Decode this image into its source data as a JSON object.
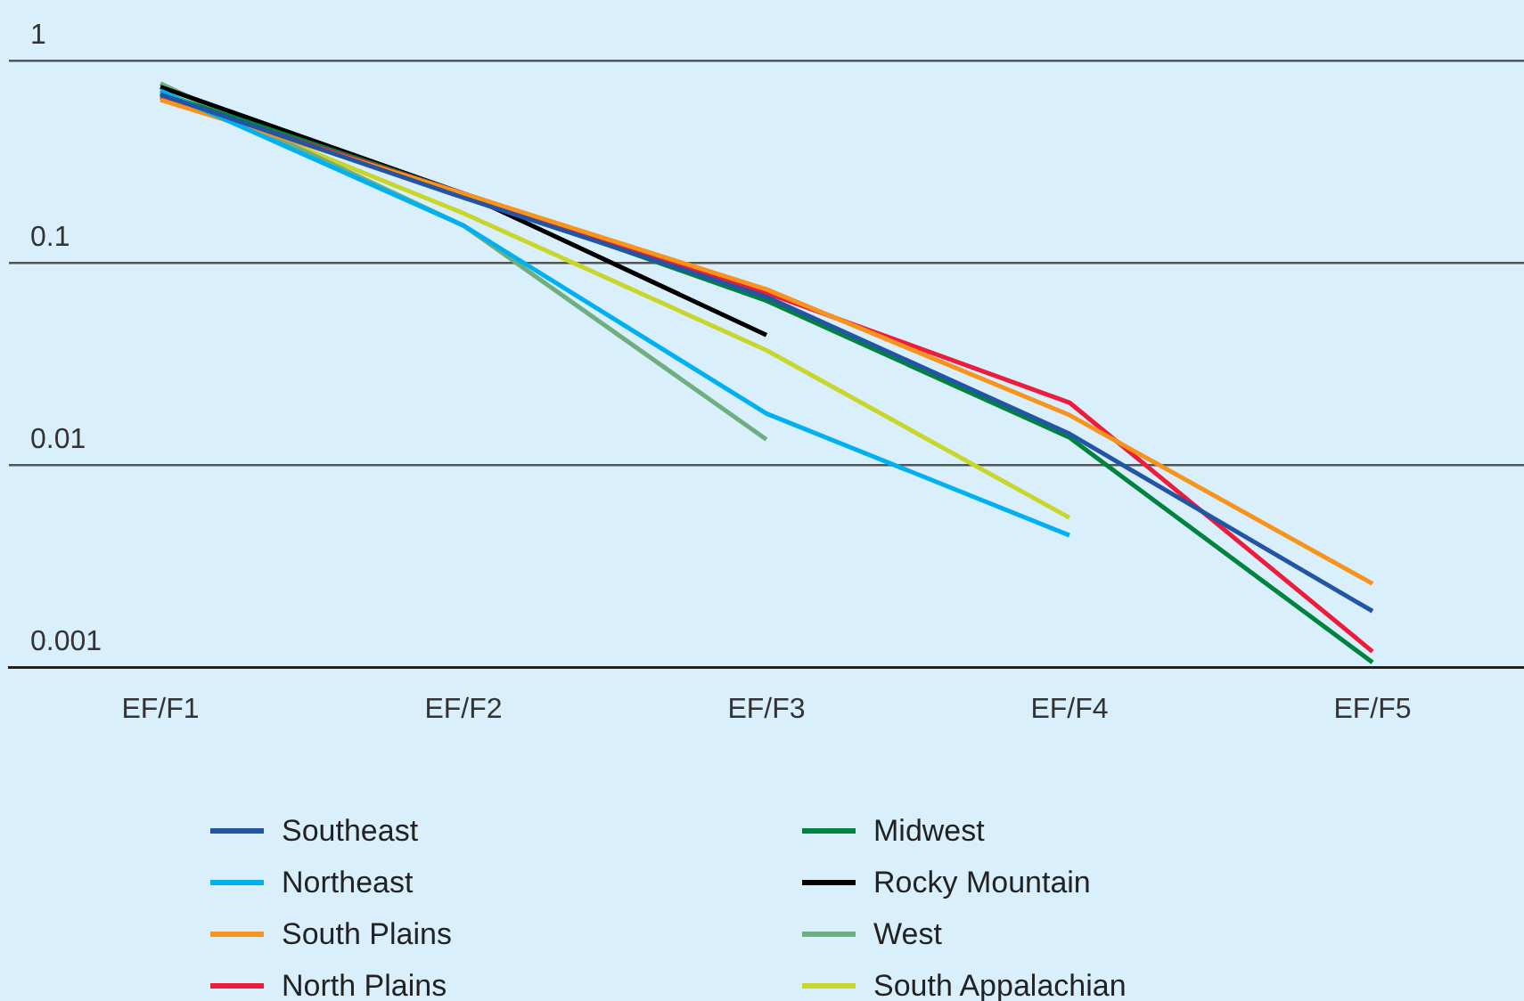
{
  "chart_data": {
    "type": "line",
    "categories": [
      "EF/F1",
      "EF/F2",
      "EF/F3",
      "EF/F4",
      "EF/F5"
    ],
    "series": [
      {
        "name": "Southeast",
        "color": "#2255a4",
        "values": [
          0.68,
          0.21,
          0.068,
          0.0143,
          0.0019
        ]
      },
      {
        "name": "Northeast",
        "color": "#00b0f0",
        "values": [
          0.71,
          0.153,
          0.018,
          0.0045,
          null
        ]
      },
      {
        "name": "South Plains",
        "color": "#f7941d",
        "values": [
          0.64,
          0.22,
          0.074,
          0.0177,
          0.0026
        ]
      },
      {
        "name": "North Plains",
        "color": "#ed1c3a",
        "values": [
          0.66,
          0.22,
          0.071,
          0.0204,
          0.0012
        ]
      },
      {
        "name": "Midwest",
        "color": "#00843d",
        "values": [
          0.69,
          0.22,
          0.065,
          0.0137,
          0.00106
        ]
      },
      {
        "name": "Rocky Mountain",
        "color": "#000000",
        "values": [
          0.74,
          0.22,
          0.044,
          null,
          null
        ]
      },
      {
        "name": "West",
        "color": "#6fae7e",
        "values": [
          0.77,
          0.153,
          0.0134,
          null,
          null
        ]
      },
      {
        "name": "South Appalachian",
        "color": "#c8d62b",
        "values": [
          0.71,
          0.176,
          0.037,
          0.0055,
          null
        ]
      }
    ],
    "log": "y",
    "ylim": [
      0.001,
      1
    ],
    "yticks": [
      1,
      0.1,
      0.01,
      0.001
    ],
    "grid": "y",
    "legend": "bottom",
    "marker": "none",
    "line_style": "solid"
  }
}
